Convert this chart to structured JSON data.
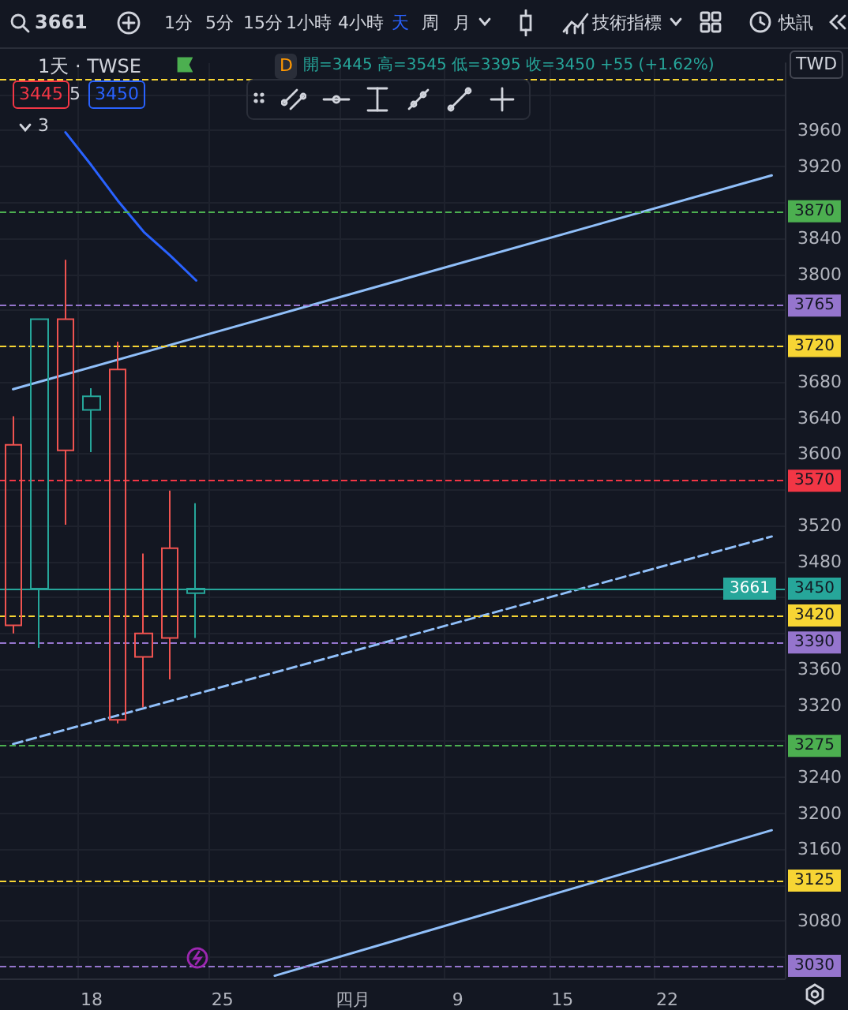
{
  "chart_data": {
    "type": "candlestick",
    "title": "3661",
    "subtitle": "1天 · TWSE",
    "categories": [
      null,
      null,
      null,
      "18",
      null,
      null,
      null,
      null,
      "25",
      null,
      null,
      null,
      null,
      "四月",
      null,
      null,
      null,
      "9",
      null,
      null,
      null,
      "15",
      null,
      null,
      null,
      "22",
      null,
      null,
      null,
      null
    ],
    "ohlc": [
      [
        3610,
        3642,
        3400,
        3409
      ],
      [
        3450,
        3750,
        3384,
        3750
      ],
      [
        3750,
        3816,
        3521,
        3604
      ],
      [
        3649,
        3673,
        3602,
        3664
      ],
      [
        3694,
        3725,
        3300,
        3304
      ],
      [
        3400,
        3489,
        3318,
        3374
      ],
      [
        3495,
        3559,
        3349,
        3395
      ],
      [
        3445,
        3545,
        3395,
        3450
      ],
      null,
      null,
      null,
      null,
      null,
      null,
      null,
      null,
      null,
      null,
      null,
      null,
      null,
      null,
      null,
      null,
      null,
      null,
      null,
      null,
      null,
      null
    ],
    "colors": [
      "#ef5350",
      "#26a69a",
      "#ef5350",
      "#26a69a",
      "#ef5350",
      "#ef5350",
      "#ef5350",
      "#26a69a",
      null,
      null,
      null,
      null,
      null,
      null,
      null,
      null,
      null,
      null,
      null,
      null,
      null,
      null,
      null,
      null,
      null,
      null,
      null,
      null,
      null,
      null
    ],
    "series": [
      {
        "type": "line",
        "color": "#2962ff",
        "values": [
          null,
          null,
          3958,
          3921,
          3882,
          3847,
          3821,
          3793,
          null,
          null,
          null,
          null,
          null,
          null,
          null,
          null,
          null,
          null,
          null,
          null,
          null,
          null,
          null,
          null,
          null,
          null,
          null,
          null,
          null,
          null
        ]
      },
      {
        "type": "line",
        "color": "#90bff9",
        "values": [
          3672,
          null,
          null,
          null,
          null,
          null,
          null,
          null,
          null,
          null,
          null,
          null,
          null,
          null,
          null,
          null,
          null,
          null,
          null,
          null,
          null,
          null,
          null,
          null,
          null,
          null,
          null,
          null,
          null,
          3910
        ]
      },
      {
        "type": "line",
        "color": "#90bff9",
        "line_style": "dashed",
        "values": [
          3277,
          null,
          null,
          null,
          null,
          null,
          null,
          null,
          null,
          null,
          null,
          null,
          null,
          null,
          null,
          null,
          null,
          null,
          null,
          null,
          null,
          null,
          null,
          null,
          null,
          null,
          null,
          null,
          null,
          3508
        ]
      },
      {
        "type": "line",
        "color": "#90bff9",
        "values": [
          null,
          null,
          null,
          null,
          null,
          null,
          null,
          null,
          null,
          null,
          3019,
          null,
          null,
          null,
          null,
          null,
          null,
          null,
          null,
          null,
          null,
          null,
          null,
          null,
          null,
          null,
          null,
          null,
          null,
          3181
        ]
      }
    ],
    "ylim": [
      3016,
      4035
    ],
    "yticks": [
      {
        "value": 3040,
        "label": null
      },
      3080,
      {
        "value": 3120,
        "label": null
      },
      3160,
      3200,
      3240,
      {
        "value": 3280,
        "label": null
      },
      3320,
      3360,
      {
        "value": 3400,
        "label": null
      },
      {
        "value": 3440,
        "label": null
      },
      3480,
      3520,
      {
        "value": 3560,
        "label": null
      },
      3600,
      3640,
      3680,
      {
        "value": 3720,
        "label": null
      },
      {
        "value": 3760,
        "label": null
      },
      3800,
      3840,
      {
        "value": 3880,
        "label": null
      },
      3920,
      3960,
      {
        "value": 4000,
        "label": null
      }
    ],
    "ref_lines": [
      {
        "axis": "y",
        "value": 4017,
        "label": null,
        "color": "#f7d534",
        "line_style": "dashed"
      },
      {
        "axis": "y",
        "value": 3870,
        "label": "3870",
        "color": "#4caf50",
        "line_style": "dashed"
      },
      {
        "axis": "y",
        "value": 3765,
        "label": "3765",
        "color": "#9575cd",
        "line_style": "dashed"
      },
      {
        "axis": "y",
        "value": 3720,
        "label": "3720",
        "color": "#f7d534",
        "line_style": "dashed"
      },
      {
        "axis": "y",
        "value": 3570,
        "label": "3570",
        "color": "#f23645",
        "line_style": "dashed"
      },
      {
        "axis": "y",
        "value": 3450,
        "label": "3450",
        "color": "#26a69a",
        "line_style": "solid"
      },
      {
        "axis": "y",
        "value": 3420,
        "label": "3420",
        "color": "#f7d534",
        "line_style": "dashed"
      },
      {
        "axis": "y",
        "value": 3390,
        "label": "3390",
        "color": "#9575cd",
        "line_style": "dashed"
      },
      {
        "axis": "y",
        "value": 3275,
        "label": "3275",
        "color": "#4caf50",
        "line_style": "dashed"
      },
      {
        "axis": "y",
        "value": 3125,
        "label": "3125",
        "color": "#f7d534",
        "line_style": "dashed"
      },
      {
        "axis": "y",
        "value": 3030,
        "label": "3030",
        "color": "#9575cd",
        "line_style": "dashed"
      }
    ],
    "annotations": [
      "1分",
      "5分",
      "15分",
      "1小時",
      "4小時",
      "天",
      "周",
      "月",
      "技術指標",
      "快訊",
      "D",
      "開=3445 高=3545 低=3395 收=3450 +55 (+1.62%)",
      "3445",
      "5",
      "3450",
      "3",
      "TWD",
      {
        "text": "3661",
        "y": 3450
      }
    ],
    "grid": true,
    "marker": "none"
  }
}
